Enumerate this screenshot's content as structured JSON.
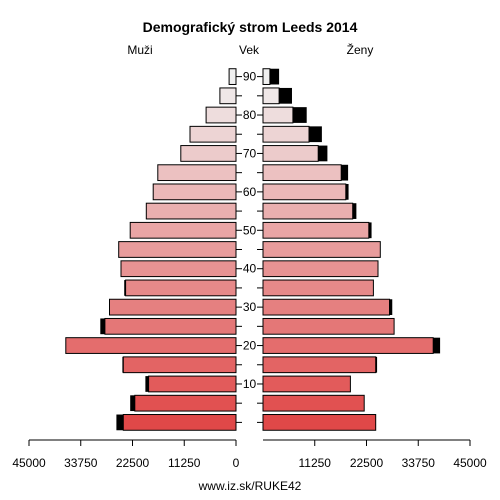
{
  "chart_data": {
    "type": "bar",
    "title": "Demografický strom Leeds 2014",
    "left_label": "Muži",
    "right_label": "Ženy",
    "center_label": "Vek",
    "footer": "www.iz.sk/RUKE42",
    "age_groups": [
      "0-4",
      "5-9",
      "10-14",
      "15-19",
      "20-24",
      "25-29",
      "30-34",
      "35-39",
      "40-44",
      "45-49",
      "50-54",
      "55-59",
      "60-64",
      "65-69",
      "70-74",
      "75-79",
      "80-84",
      "85-89",
      "90+"
    ],
    "age_ticks": [
      10,
      20,
      30,
      40,
      50,
      60,
      70,
      80,
      90
    ],
    "x_ticks": [
      45000,
      33750,
      22500,
      11250,
      0,
      11250,
      22500,
      33750,
      45000
    ],
    "xlim": [
      0,
      45000
    ],
    "series": [
      {
        "name": "Muži",
        "values": [
          24500,
          22000,
          19000,
          24500,
          37000,
          28500,
          27500,
          24000,
          25000,
          25500,
          23000,
          19500,
          18000,
          17000,
          12000,
          10000,
          6500,
          3500,
          1500
        ],
        "extra": [
          1500,
          1000,
          700,
          200,
          0,
          1000,
          0,
          300,
          0,
          0,
          0,
          0,
          0,
          0,
          0,
          0,
          0,
          0,
          0
        ]
      },
      {
        "name": "Ženy",
        "values": [
          24500,
          22000,
          19000,
          24500,
          37000,
          28500,
          27500,
          24000,
          25000,
          25500,
          23000,
          19500,
          18000,
          17000,
          12000,
          10000,
          6500,
          3500,
          1500
        ],
        "extra": [
          0,
          0,
          0,
          300,
          1500,
          0,
          600,
          0,
          0,
          0,
          600,
          800,
          600,
          1500,
          2000,
          2800,
          3000,
          2800,
          2000
        ]
      }
    ],
    "colors": {
      "male_bottom": "#e04848",
      "male_top": "#f0f0f0",
      "female_bottom": "#e04848",
      "female_top": "#f0f0f0",
      "extra": "#000000",
      "outline": "#000000"
    }
  }
}
